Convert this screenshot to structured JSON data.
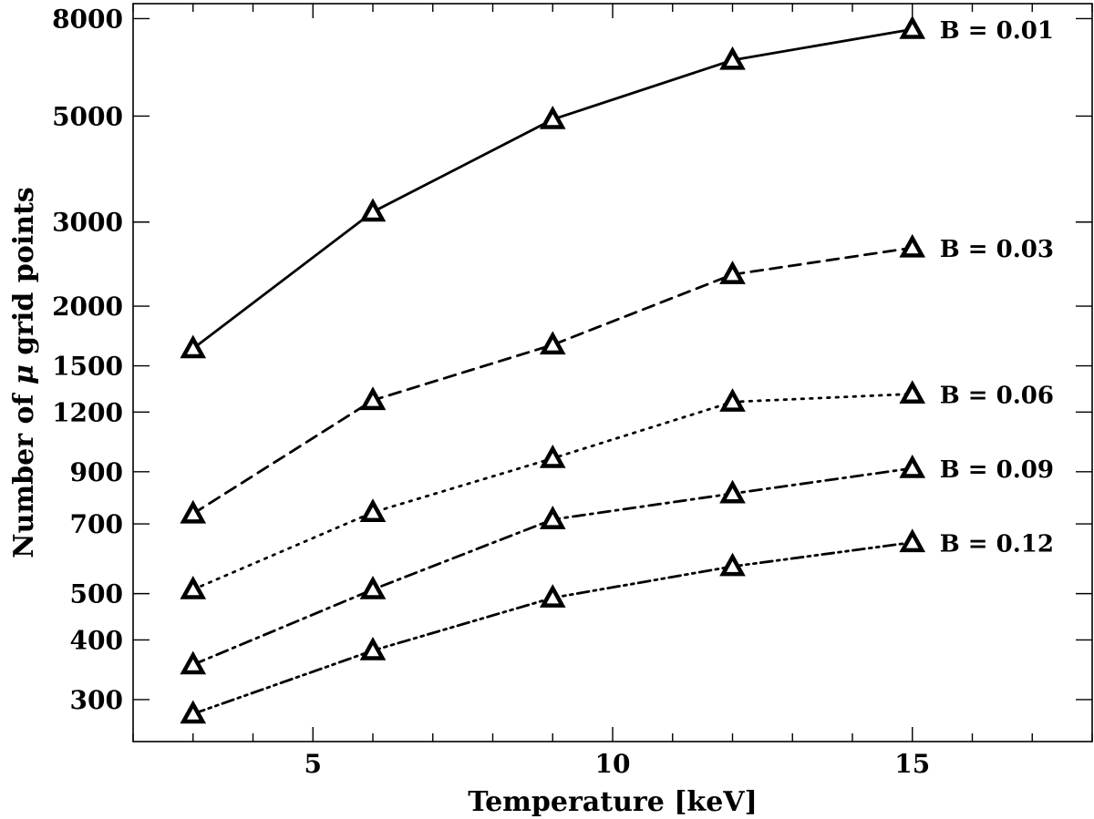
{
  "chart_data": {
    "type": "line",
    "title": "",
    "xlabel": "Temperature [keV]",
    "ylabel_prefix": "Number of ",
    "ylabel_symbol": "μ",
    "ylabel_suffix": " grid points",
    "yscale": "log",
    "xlim": [
      2.0,
      18.0
    ],
    "ylim": [
      245,
      8600
    ],
    "x_ticks": [
      5,
      10,
      15
    ],
    "y_ticks": [
      300,
      400,
      500,
      700,
      900,
      1200,
      1500,
      2000,
      3000,
      5000,
      8000
    ],
    "x": [
      3,
      6,
      9,
      12,
      15
    ],
    "marker": "triangle",
    "series": [
      {
        "name": "B = 0.01",
        "dash": "solid",
        "values": [
          1630,
          3150,
          4920,
          6550,
          7600
        ]
      },
      {
        "name": "B = 0.03",
        "dash": "dashed",
        "values": [
          735,
          1270,
          1660,
          2330,
          2650
        ]
      },
      {
        "name": "B = 0.06",
        "dash": "dotted",
        "values": [
          510,
          740,
          960,
          1260,
          1310
        ]
      },
      {
        "name": "B = 0.09",
        "dash": "dashdot",
        "values": [
          355,
          510,
          715,
          810,
          915
        ]
      },
      {
        "name": "B = 0.12",
        "dash": "dashdotdot",
        "values": [
          280,
          380,
          490,
          570,
          640
        ]
      }
    ]
  }
}
